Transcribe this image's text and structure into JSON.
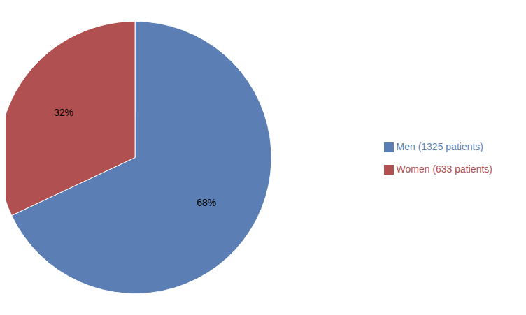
{
  "chart_data": {
    "type": "pie",
    "categories": [
      "Men (1325 patients)",
      "Women (633 patients)"
    ],
    "values": [
      68,
      32
    ],
    "value_labels": [
      "68%",
      "32%"
    ],
    "colors": [
      "#5b7fb5",
      "#b05050"
    ],
    "data_labels": true,
    "legend": "right"
  }
}
